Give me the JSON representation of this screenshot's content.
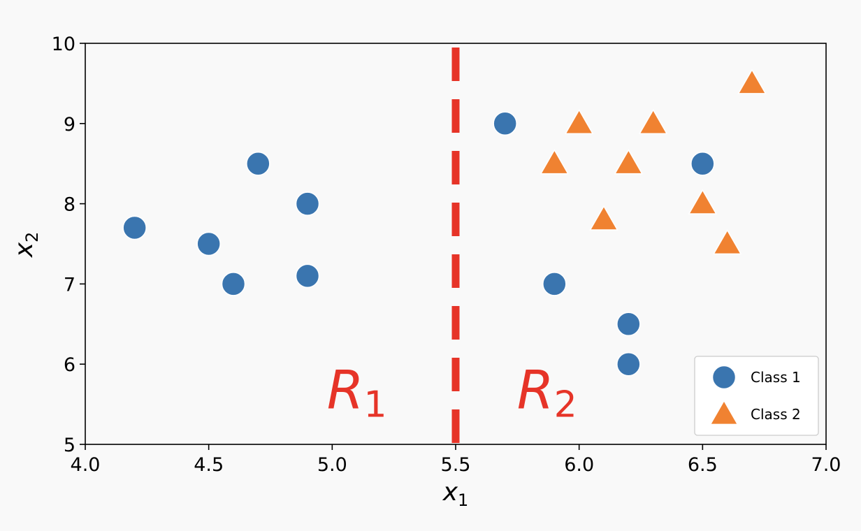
{
  "chart_data": {
    "type": "scatter",
    "xlabel": "x",
    "xlabel_sub": "1",
    "ylabel": "x",
    "ylabel_sub": "2",
    "xlim": [
      4.0,
      7.0
    ],
    "ylim": [
      5,
      10
    ],
    "xticks": [
      "4.0",
      "4.5",
      "5.0",
      "5.5",
      "6.0",
      "6.5",
      "7.0"
    ],
    "yticks": [
      "5",
      "6",
      "7",
      "8",
      "9",
      "10"
    ],
    "grid": false,
    "legend_position": "bottom-right",
    "series": [
      {
        "name": "Class 1",
        "marker": "circle",
        "color": "#3a75af",
        "points": [
          [
            4.2,
            7.7
          ],
          [
            4.5,
            7.5
          ],
          [
            4.6,
            7.0
          ],
          [
            4.7,
            8.5
          ],
          [
            4.9,
            8.0
          ],
          [
            4.9,
            7.1
          ],
          [
            5.7,
            9.0
          ],
          [
            5.9,
            7.0
          ],
          [
            6.2,
            6.5
          ],
          [
            6.2,
            6.0
          ],
          [
            6.5,
            8.5
          ]
        ]
      },
      {
        "name": "Class 2",
        "marker": "triangle",
        "color": "#f08231",
        "points": [
          [
            5.9,
            8.5
          ],
          [
            6.0,
            9.0
          ],
          [
            6.1,
            7.8
          ],
          [
            6.2,
            8.5
          ],
          [
            6.3,
            9.0
          ],
          [
            6.5,
            8.0
          ],
          [
            6.6,
            7.5
          ],
          [
            6.7,
            9.5
          ]
        ]
      }
    ],
    "split_line": {
      "x": 5.5,
      "color": "#e63428",
      "style": "dashed"
    },
    "annotations": [
      {
        "label": "R",
        "sub": "1",
        "x": 5.1,
        "y": 5.45,
        "color": "#e63428"
      },
      {
        "label": "R",
        "sub": "2",
        "x": 5.87,
        "y": 5.45,
        "color": "#e63428"
      }
    ]
  }
}
